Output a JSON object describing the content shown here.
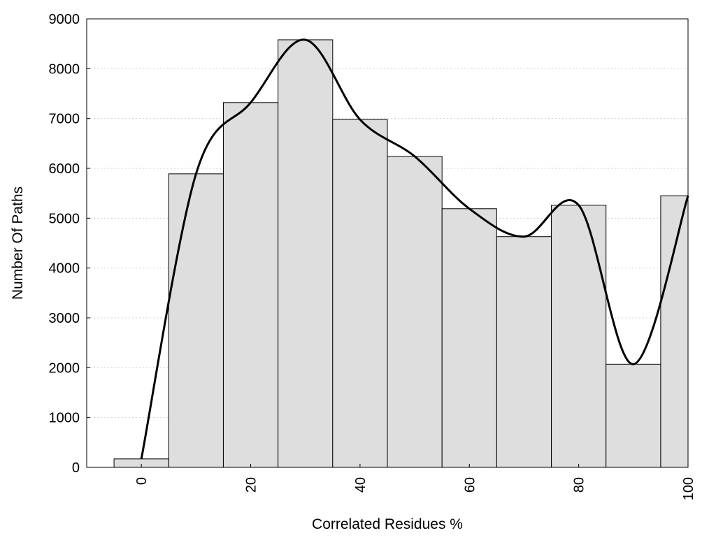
{
  "chart_data": {
    "type": "bar",
    "xlabel": "Correlated Residues %",
    "ylabel": "Number Of Paths",
    "x": [
      0,
      10,
      20,
      30,
      40,
      50,
      60,
      70,
      80,
      90,
      100
    ],
    "values": [
      170,
      5890,
      7320,
      8580,
      6980,
      6240,
      5190,
      4630,
      5260,
      2070,
      5450
    ],
    "bin_width": 10,
    "xlim": [
      -10,
      100
    ],
    "ylim": [
      0,
      9000
    ],
    "x_ticks": [
      0,
      20,
      40,
      60,
      80,
      100
    ],
    "y_ticks": [
      0,
      1000,
      2000,
      3000,
      4000,
      5000,
      6000,
      7000,
      8000,
      9000
    ],
    "grid": "horizontal dotted",
    "bar_color": "#dedede",
    "bar_edge_color": "#000000",
    "curve": {
      "type": "smooth-line",
      "color": "#000000",
      "x": [
        0,
        10,
        20,
        30,
        40,
        50,
        60,
        70,
        80,
        90,
        100
      ],
      "y": [
        170,
        5890,
        7320,
        8580,
        6980,
        6240,
        5190,
        4630,
        5260,
        2070,
        5450
      ]
    }
  }
}
